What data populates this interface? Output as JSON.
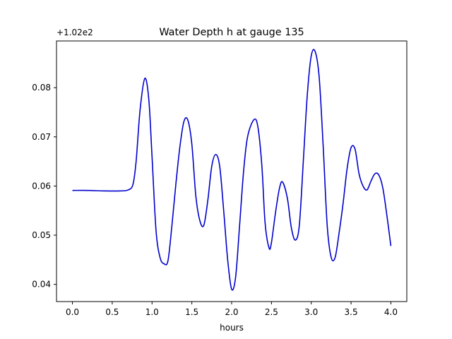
{
  "chart_data": {
    "type": "line",
    "title": "Water Depth h at gauge 135",
    "xlabel": "hours",
    "ylabel": "",
    "offset_text": "+1.02e2",
    "xlim": [
      -0.2,
      4.2
    ],
    "ylim": [
      0.0365,
      0.0895
    ],
    "x_ticks": [
      0.0,
      0.5,
      1.0,
      1.5,
      2.0,
      2.5,
      3.0,
      3.5,
      4.0
    ],
    "x_tick_labels": [
      "0.0",
      "0.5",
      "1.0",
      "1.5",
      "2.0",
      "2.5",
      "3.0",
      "3.5",
      "4.0"
    ],
    "y_ticks": [
      0.04,
      0.05,
      0.06,
      0.07,
      0.08
    ],
    "y_tick_labels": [
      "0.04",
      "0.05",
      "0.06",
      "0.07",
      "0.08"
    ],
    "grid": false,
    "colors": {
      "line": "#0000cc",
      "axes": "#000000",
      "background": "#ffffff"
    },
    "series": [
      {
        "x": [
          0.0,
          0.2,
          0.4,
          0.6,
          0.7,
          0.76,
          0.8,
          0.85,
          0.91,
          0.96,
          1.0,
          1.05,
          1.1,
          1.15,
          1.2,
          1.25,
          1.3,
          1.35,
          1.4,
          1.45,
          1.5,
          1.55,
          1.6,
          1.65,
          1.7,
          1.75,
          1.8,
          1.85,
          1.9,
          1.95,
          2.0,
          2.05,
          2.1,
          2.15,
          2.2,
          2.28,
          2.33,
          2.38,
          2.42,
          2.47,
          2.5,
          2.55,
          2.6,
          2.64,
          2.7,
          2.75,
          2.8,
          2.85,
          2.9,
          2.95,
          3.0,
          3.05,
          3.1,
          3.15,
          3.2,
          3.25,
          3.3,
          3.35,
          3.4,
          3.45,
          3.5,
          3.55,
          3.6,
          3.65,
          3.7,
          3.75,
          3.8,
          3.85,
          3.9,
          3.95,
          4.0
        ],
        "y": [
          0.0591,
          0.0591,
          0.059,
          0.059,
          0.0592,
          0.0603,
          0.065,
          0.0755,
          0.0819,
          0.0775,
          0.066,
          0.051,
          0.0455,
          0.0442,
          0.0448,
          0.052,
          0.0605,
          0.068,
          0.0731,
          0.0734,
          0.0685,
          0.058,
          0.053,
          0.052,
          0.057,
          0.064,
          0.0664,
          0.064,
          0.055,
          0.045,
          0.039,
          0.0415,
          0.052,
          0.063,
          0.07,
          0.0735,
          0.072,
          0.064,
          0.0525,
          0.0474,
          0.0485,
          0.0545,
          0.0595,
          0.0608,
          0.0575,
          0.0515,
          0.049,
          0.052,
          0.065,
          0.0785,
          0.0865,
          0.0873,
          0.082,
          0.068,
          0.052,
          0.0455,
          0.0455,
          0.0505,
          0.0565,
          0.0635,
          0.0678,
          0.0675,
          0.0625,
          0.06,
          0.0592,
          0.061,
          0.0625,
          0.0622,
          0.0595,
          0.054,
          0.0478
        ]
      }
    ]
  }
}
